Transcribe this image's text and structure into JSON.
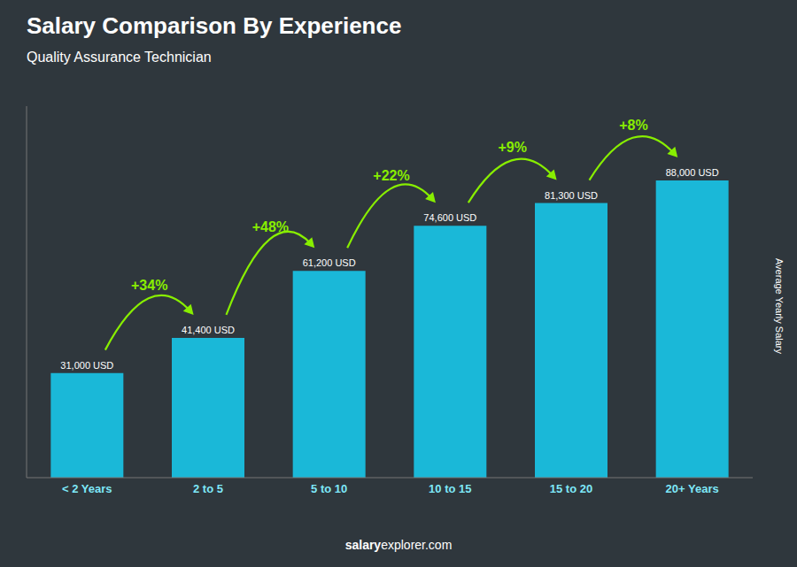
{
  "chart_data": {
    "type": "bar",
    "title": "Salary Comparison By Experience",
    "subtitle": "Quality Assurance Technician",
    "categories": [
      "< 2 Years",
      "2 to 5",
      "5 to 10",
      "10 to 15",
      "15 to 20",
      "20+ Years"
    ],
    "values": [
      31000,
      41400,
      61200,
      74600,
      81300,
      88000
    ],
    "value_labels": [
      "31,000 USD",
      "41,400 USD",
      "61,200 USD",
      "74,600 USD",
      "81,300 USD",
      "88,000 USD"
    ],
    "data_labels": true,
    "color": "#1ab8d8",
    "ylim": [
      0,
      110000
    ],
    "tick_labels": "x",
    "grid": false,
    "y_label": "Average Yearly Salary",
    "annotations": [
      {
        "text": "+34%",
        "between": [
          "< 2 Years",
          "2 to 5"
        ],
        "color": "#88ee00"
      },
      {
        "text": "+48%",
        "between": [
          "2 to 5",
          "5 to 10"
        ],
        "color": "#88ee00"
      },
      {
        "text": "+22%",
        "between": [
          "5 to 10",
          "10 to 15"
        ],
        "color": "#88ee00"
      },
      {
        "text": "+9%",
        "between": [
          "10 to 15",
          "15 to 20"
        ],
        "color": "#88ee00"
      },
      {
        "text": "+8%",
        "between": [
          "15 to 20",
          "20+ Years"
        ],
        "color": "#88ee00"
      }
    ],
    "footer": [
      "salary",
      "explorer.com"
    ]
  }
}
